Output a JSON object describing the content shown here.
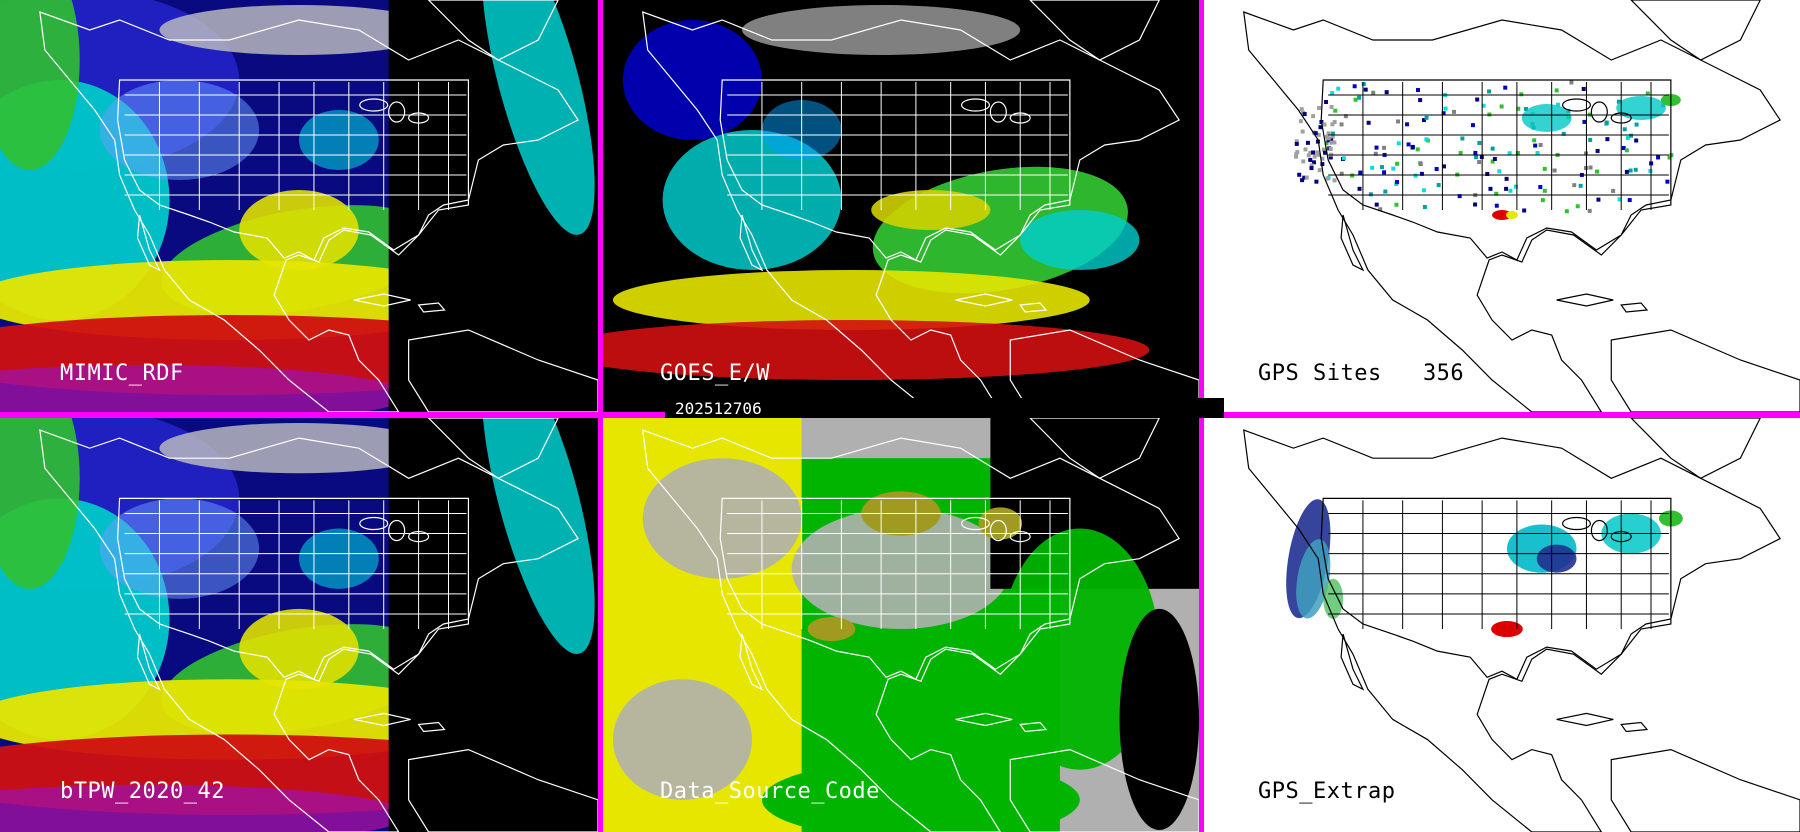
{
  "panels": [
    {
      "id": "mimic",
      "label": "MIMIC_RDF",
      "style": "moisture-full",
      "label_theme": "light"
    },
    {
      "id": "goes",
      "label": "GOES_E/W",
      "style": "moisture-gappy",
      "label_theme": "light"
    },
    {
      "id": "gps",
      "label": "GPS Sites   356",
      "style": "stations",
      "label_theme": "dark"
    },
    {
      "id": "btpw",
      "label": "bTPW_2020_42",
      "style": "moisture-full",
      "label_theme": "light"
    },
    {
      "id": "dsc",
      "label": "Data_Source_Code",
      "style": "source-code",
      "label_theme": "light"
    },
    {
      "id": "gpsx",
      "label": "GPS_Extrap",
      "style": "extrapolated",
      "label_theme": "dark"
    }
  ],
  "timestamp": "202512706",
  "colors": {
    "divider": "#ff00ff",
    "dry": "#000080",
    "low": "#0000cd",
    "moist": "#00e0e0",
    "wet": "#00c800",
    "very_wet": "#e8e800",
    "saturated": "#dc0000",
    "extreme": "#c020c0",
    "cloud_gray": "#b0b0b0",
    "source_yellow": "#e6e600",
    "source_green": "#00b400",
    "source_olive": "#a09a20"
  },
  "icons": [
    "coastline-map",
    "state-borders"
  ]
}
